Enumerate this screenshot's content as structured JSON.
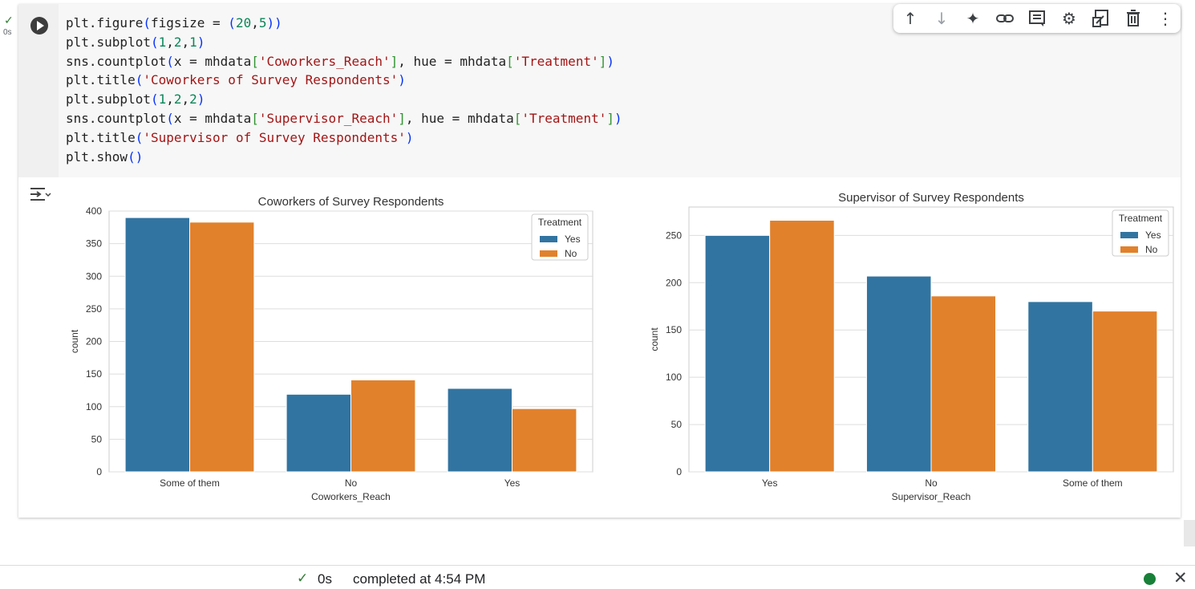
{
  "cell": {
    "exec_status_icon": "check-icon",
    "exec_time": "0s",
    "code_lines": [
      "plt.figure(figsize = (20,5))",
      "plt.subplot(1,2,1)",
      "sns.countplot(x = mhdata['Coworkers_Reach'], hue = mhdata['Treatment'])",
      "plt.title('Coworkers of Survey Respondents')",
      "plt.subplot(1,2,2)",
      "sns.countplot(x = mhdata['Supervisor_Reach'], hue = mhdata['Treatment'])",
      "plt.title('Supervisor of Survey Respondents')",
      "plt.show()"
    ]
  },
  "toolbar": {
    "icons": [
      "arrow-up-icon",
      "arrow-down-icon",
      "sparkle-icon",
      "link-icon",
      "comment-icon",
      "gear-icon",
      "mirror-cell-icon",
      "trash-icon",
      "more-vert-icon"
    ]
  },
  "colors": {
    "yes": "#3274a1",
    "no": "#e1812c",
    "grid": "#dddddd",
    "axis_border": "#cccccc"
  },
  "chart_data": [
    {
      "type": "bar",
      "title": "Coworkers of Survey Respondents",
      "xlabel": "Coworkers_Reach",
      "ylabel": "count",
      "categories": [
        "Some of them",
        "No",
        "Yes"
      ],
      "series": [
        {
          "name": "Yes",
          "values": [
            390,
            119,
            128
          ]
        },
        {
          "name": "No",
          "values": [
            383,
            141,
            97
          ]
        }
      ],
      "ylim": [
        0,
        400
      ],
      "yticks": [
        0,
        50,
        100,
        150,
        200,
        250,
        300,
        350,
        400
      ],
      "legend": {
        "title": "Treatment",
        "placement": "top-right"
      },
      "grid": true
    },
    {
      "type": "bar",
      "title": "Supervisor of Survey Respondents",
      "xlabel": "Supervisor_Reach",
      "ylabel": "count",
      "categories": [
        "Yes",
        "No",
        "Some of them"
      ],
      "series": [
        {
          "name": "Yes",
          "values": [
            250,
            207,
            180
          ]
        },
        {
          "name": "No",
          "values": [
            266,
            186,
            170
          ]
        }
      ],
      "ylim": [
        0,
        280
      ],
      "yticks": [
        0,
        50,
        100,
        150,
        200,
        250
      ],
      "legend": {
        "title": "Treatment",
        "placement": "top-right"
      },
      "grid": true
    }
  ],
  "statusbar": {
    "check_icon": "check-icon",
    "time": "0s",
    "message": "completed at 4:54 PM",
    "close_icon": "close-icon"
  }
}
